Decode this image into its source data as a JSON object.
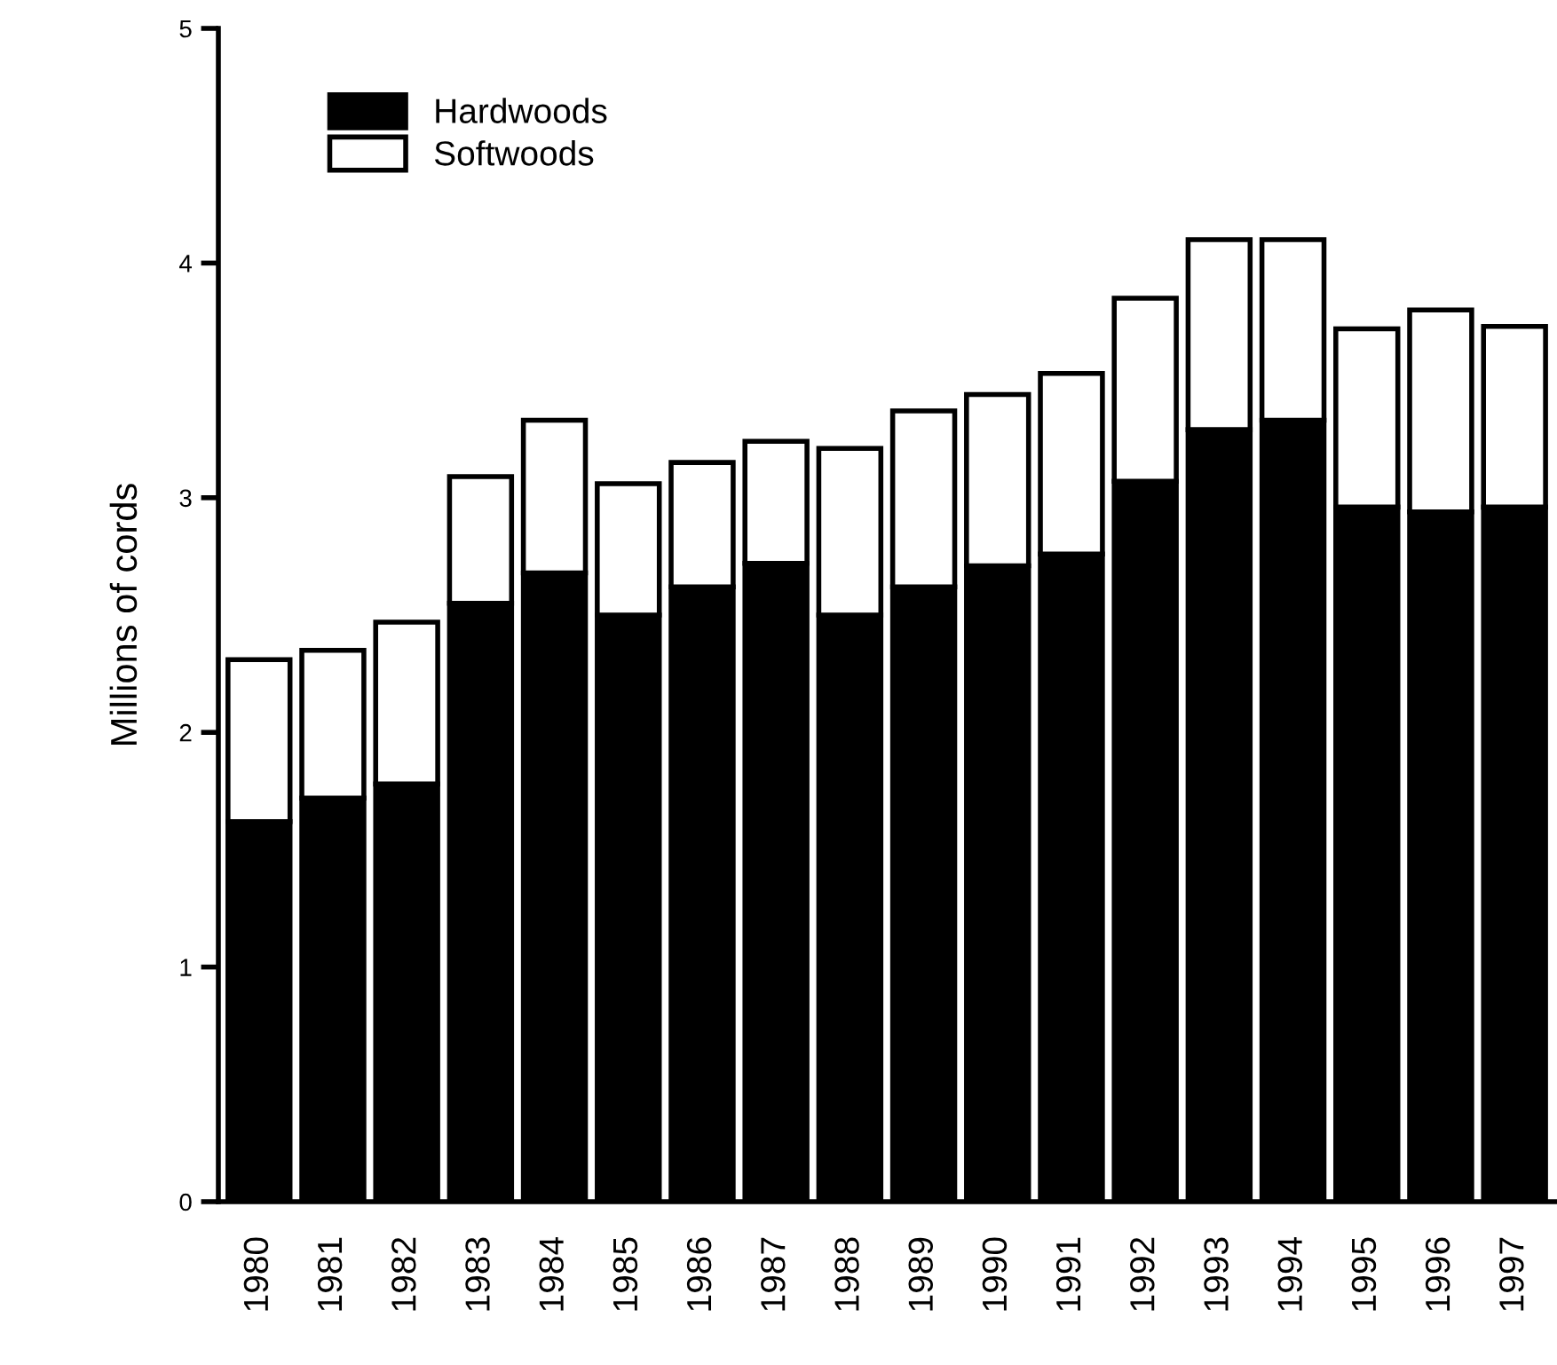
{
  "chart_data": {
    "type": "bar",
    "stacked": true,
    "ylabel": "Millions of cords",
    "categories": [
      "1980",
      "1981",
      "1982",
      "1983",
      "1984",
      "1985",
      "1986",
      "1987",
      "1988",
      "1989",
      "1990",
      "1991",
      "1992",
      "1993",
      "1994",
      "1995",
      "1996",
      "1997"
    ],
    "series": [
      {
        "name": "Hardwoods",
        "color": "#000000",
        "values": [
          1.62,
          1.72,
          1.78,
          2.55,
          2.68,
          2.5,
          2.62,
          2.72,
          2.5,
          2.62,
          2.71,
          2.76,
          3.07,
          3.29,
          3.33,
          2.96,
          2.94,
          2.96
        ]
      },
      {
        "name": "Softwoods",
        "color": "#ffffff",
        "values": [
          0.69,
          0.63,
          0.69,
          0.54,
          0.65,
          0.56,
          0.53,
          0.52,
          0.71,
          0.75,
          0.73,
          0.77,
          0.78,
          0.81,
          0.77,
          0.76,
          0.86,
          0.77
        ]
      }
    ],
    "ylim": [
      0,
      5
    ],
    "yticks": [
      0,
      1,
      2,
      3,
      4,
      5
    ],
    "grid": false,
    "legend": "top left"
  }
}
